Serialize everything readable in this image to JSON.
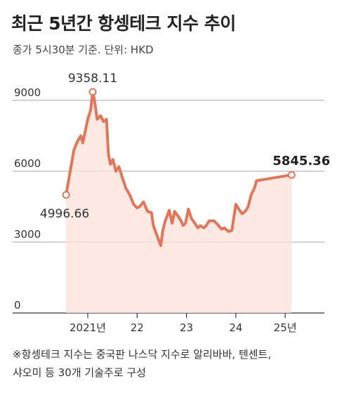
{
  "title": "최근 5년간 항셍테크 지수 추이",
  "subtitle": "종가 5시30분 기준. 단위: HKD",
  "note_line1": "※항셍테크 지수는 중국판 나스닥 지수로 알리바바, 텐센트,",
  "note_line2": "샤오미 등 30개 기술주로 구성",
  "colors": {
    "line": "#e0775a",
    "fill": "#fbe2d9",
    "grid": "#888888",
    "axis": "#333333"
  },
  "chart_data": {
    "type": "area",
    "title": "최근 5년간 항셍테크 지수 추이",
    "ylabel": "",
    "ylim": [
      0,
      10000
    ],
    "y_ticks": [
      "0",
      "3000",
      "6000",
      "9000"
    ],
    "y_tick_values": [
      0,
      3000,
      6000,
      9000
    ],
    "x_ticks": [
      "2021년",
      "22",
      "23",
      "24",
      "25년"
    ],
    "x_tick_values": [
      2021.0,
      2022.0,
      2023.0,
      2024.0,
      2025.0
    ],
    "x": [
      2020.56,
      2020.72,
      2020.8,
      2020.86,
      2020.9,
      2021.0,
      2021.06,
      2021.1,
      2021.13,
      2021.19,
      2021.26,
      2021.32,
      2021.38,
      2021.42,
      2021.46,
      2021.51,
      2021.57,
      2021.63,
      2021.69,
      2021.77,
      2021.85,
      2021.93,
      2022.0,
      2022.05,
      2022.13,
      2022.21,
      2022.29,
      2022.33,
      2022.4,
      2022.48,
      2022.52,
      2022.57,
      2022.65,
      2022.71,
      2022.76,
      2022.83,
      2022.89,
      2022.93,
      2022.98,
      2023.04,
      2023.1,
      2023.17,
      2023.23,
      2023.28,
      2023.35,
      2023.4,
      2023.46,
      2023.56,
      2023.63,
      2023.71,
      2023.77,
      2023.85,
      2023.92,
      2024.0,
      2024.06,
      2024.13,
      2024.19,
      2024.25,
      2024.31,
      2024.38,
      2024.42,
      2024.48,
      2024.55,
      2024.63,
      2024.69,
      2024.75,
      2024.85,
      2024.94,
      2025.0,
      2025.06,
      2025.13
    ],
    "values": [
      4996.66,
      6900,
      7300,
      7500,
      7200,
      8200,
      8600,
      9358.11,
      9100,
      8200,
      8350,
      8100,
      8200,
      6700,
      6300,
      6500,
      6000,
      6200,
      5800,
      5300,
      5000,
      4600,
      4450,
      4500,
      4700,
      4300,
      4250,
      3700,
      3300,
      2850,
      3500,
      3900,
      4350,
      3800,
      4300,
      4100,
      3900,
      3700,
      3800,
      4400,
      4000,
      3800,
      3600,
      3700,
      3600,
      3700,
      3900,
      3900,
      3750,
      3550,
      3600,
      3450,
      3500,
      4600,
      4400,
      4200,
      4300,
      4500,
      5000,
      5300,
      5600,
      5845.36,
      5845.36,
      5845.36,
      5845.36,
      5845.36,
      5845.36,
      5845.36,
      5845.36,
      5845.36,
      5845.36
    ],
    "annotations": {
      "start": {
        "label": "4996.66",
        "x": 2020.56,
        "y": 4996.66
      },
      "peak": {
        "label": "9358.11",
        "x": 2021.1,
        "y": 9358.11
      },
      "end": {
        "label": "5845.36",
        "x": 2025.13,
        "y": 5845.36
      }
    },
    "grid": true
  }
}
